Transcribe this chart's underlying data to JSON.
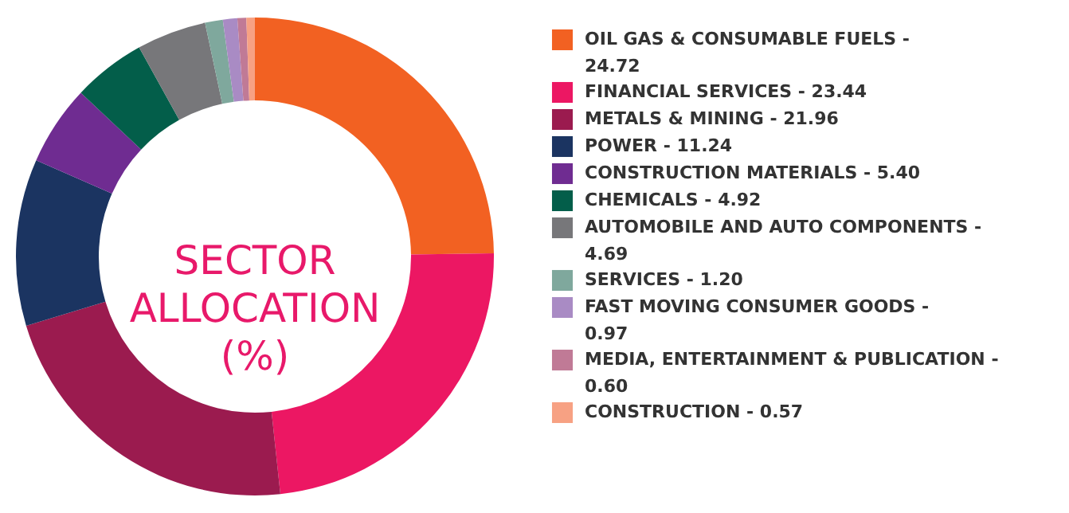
{
  "chart_data": {
    "type": "donut",
    "title": "SECTOR ALLOCATION (%)",
    "categories": [
      "OIL GAS & CONSUMABLE FUELS - 24.72",
      "FINANCIAL SERVICES - 23.44",
      "METALS & MINING - 21.96",
      "POWER - 11.24",
      "CONSTRUCTION MATERIALS - 5.40",
      "CHEMICALS - 4.92",
      "AUTOMOBILE AND AUTO COMPONENTS - 4.69",
      "SERVICES - 1.20",
      "FAST MOVING CONSUMER GOODS - 0.97",
      "MEDIA, ENTERTAINMENT & PUBLICATION - 0.60",
      "CONSTRUCTION - 0.57"
    ],
    "values": [
      24.72,
      23.44,
      21.96,
      11.24,
      5.4,
      4.92,
      4.69,
      1.2,
      0.97,
      0.6,
      0.57
    ],
    "colors": [
      "#f26122",
      "#ec1763",
      "#9b1b4f",
      "#1b3461",
      "#6f2c91",
      "#035e4a",
      "#77777a",
      "#7fa89d",
      "#a98bc4",
      "#c07a96",
      "#f7a183"
    ],
    "legend": "right"
  }
}
